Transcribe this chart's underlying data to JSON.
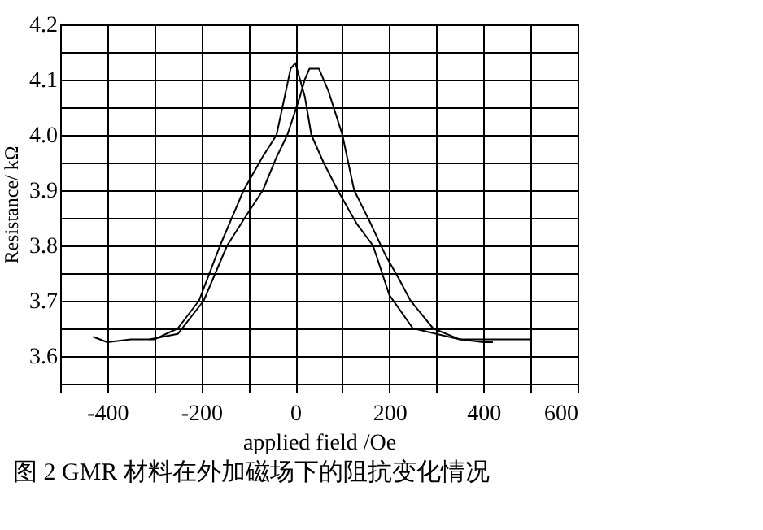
{
  "chart_data": {
    "type": "line",
    "xlabel": "applied field /Oe",
    "ylabel": "Resistance/ kΩ",
    "annotations": [
      "图 2 GMR 材料在外加磁场下的阻抗变化情况"
    ],
    "series": [
      {
        "color": "#000000",
        "x": [
          -430,
          -400,
          -350,
          -300,
          -250,
          -205,
          -160,
          -110,
          -70,
          -40,
          -10,
          0,
          20,
          34,
          60,
          90,
          130,
          165,
          200,
          250,
          300,
          350,
          400,
          420
        ],
        "values": [
          3.635,
          3.625,
          3.63,
          3.63,
          3.65,
          3.7,
          3.8,
          3.9,
          3.96,
          4.0,
          4.12,
          4.13,
          4.07,
          4.0,
          3.95,
          3.9,
          3.84,
          3.8,
          3.71,
          3.65,
          3.64,
          3.63,
          3.625,
          3.625
        ]
      },
      {
        "color": "#000000",
        "x": [
          -310,
          -250,
          -195,
          -145,
          -100,
          -69,
          -40,
          -17,
          10,
          20,
          30,
          50,
          70,
          100,
          125,
          160,
          193,
          220,
          245,
          293,
          350,
          400,
          500
        ],
        "values": [
          3.63,
          3.64,
          3.7,
          3.8,
          3.86,
          3.9,
          3.96,
          4.0,
          4.07,
          4.1,
          4.12,
          4.12,
          4.08,
          4.0,
          3.9,
          3.84,
          3.78,
          3.74,
          3.7,
          3.65,
          3.63,
          3.63,
          3.63
        ]
      }
    ],
    "xlim": [
      -500,
      600
    ],
    "xticks": [
      {
        "value": -500,
        "label": null
      },
      -400,
      {
        "value": -300,
        "label": null
      },
      -200,
      {
        "value": -100,
        "label": null
      },
      0,
      {
        "value": 100,
        "label": null
      },
      200,
      {
        "value": 300,
        "label": null
      },
      400,
      {
        "value": 500,
        "label": null
      },
      600
    ],
    "ylim": [
      3.55,
      4.2
    ],
    "yticks": [
      {
        "value": 3.55,
        "label": null
      },
      3.6,
      {
        "value": 3.65,
        "label": null
      },
      3.7,
      {
        "value": 3.75,
        "label": null
      },
      3.8,
      {
        "value": 3.85,
        "label": null
      },
      3.9,
      {
        "value": 3.95,
        "label": null
      },
      {
        "value": 4.0,
        "label": "4.0"
      },
      {
        "value": 4.05,
        "label": null
      },
      4.1,
      {
        "value": 4.15,
        "label": null
      },
      4.2
    ],
    "grid": true
  }
}
